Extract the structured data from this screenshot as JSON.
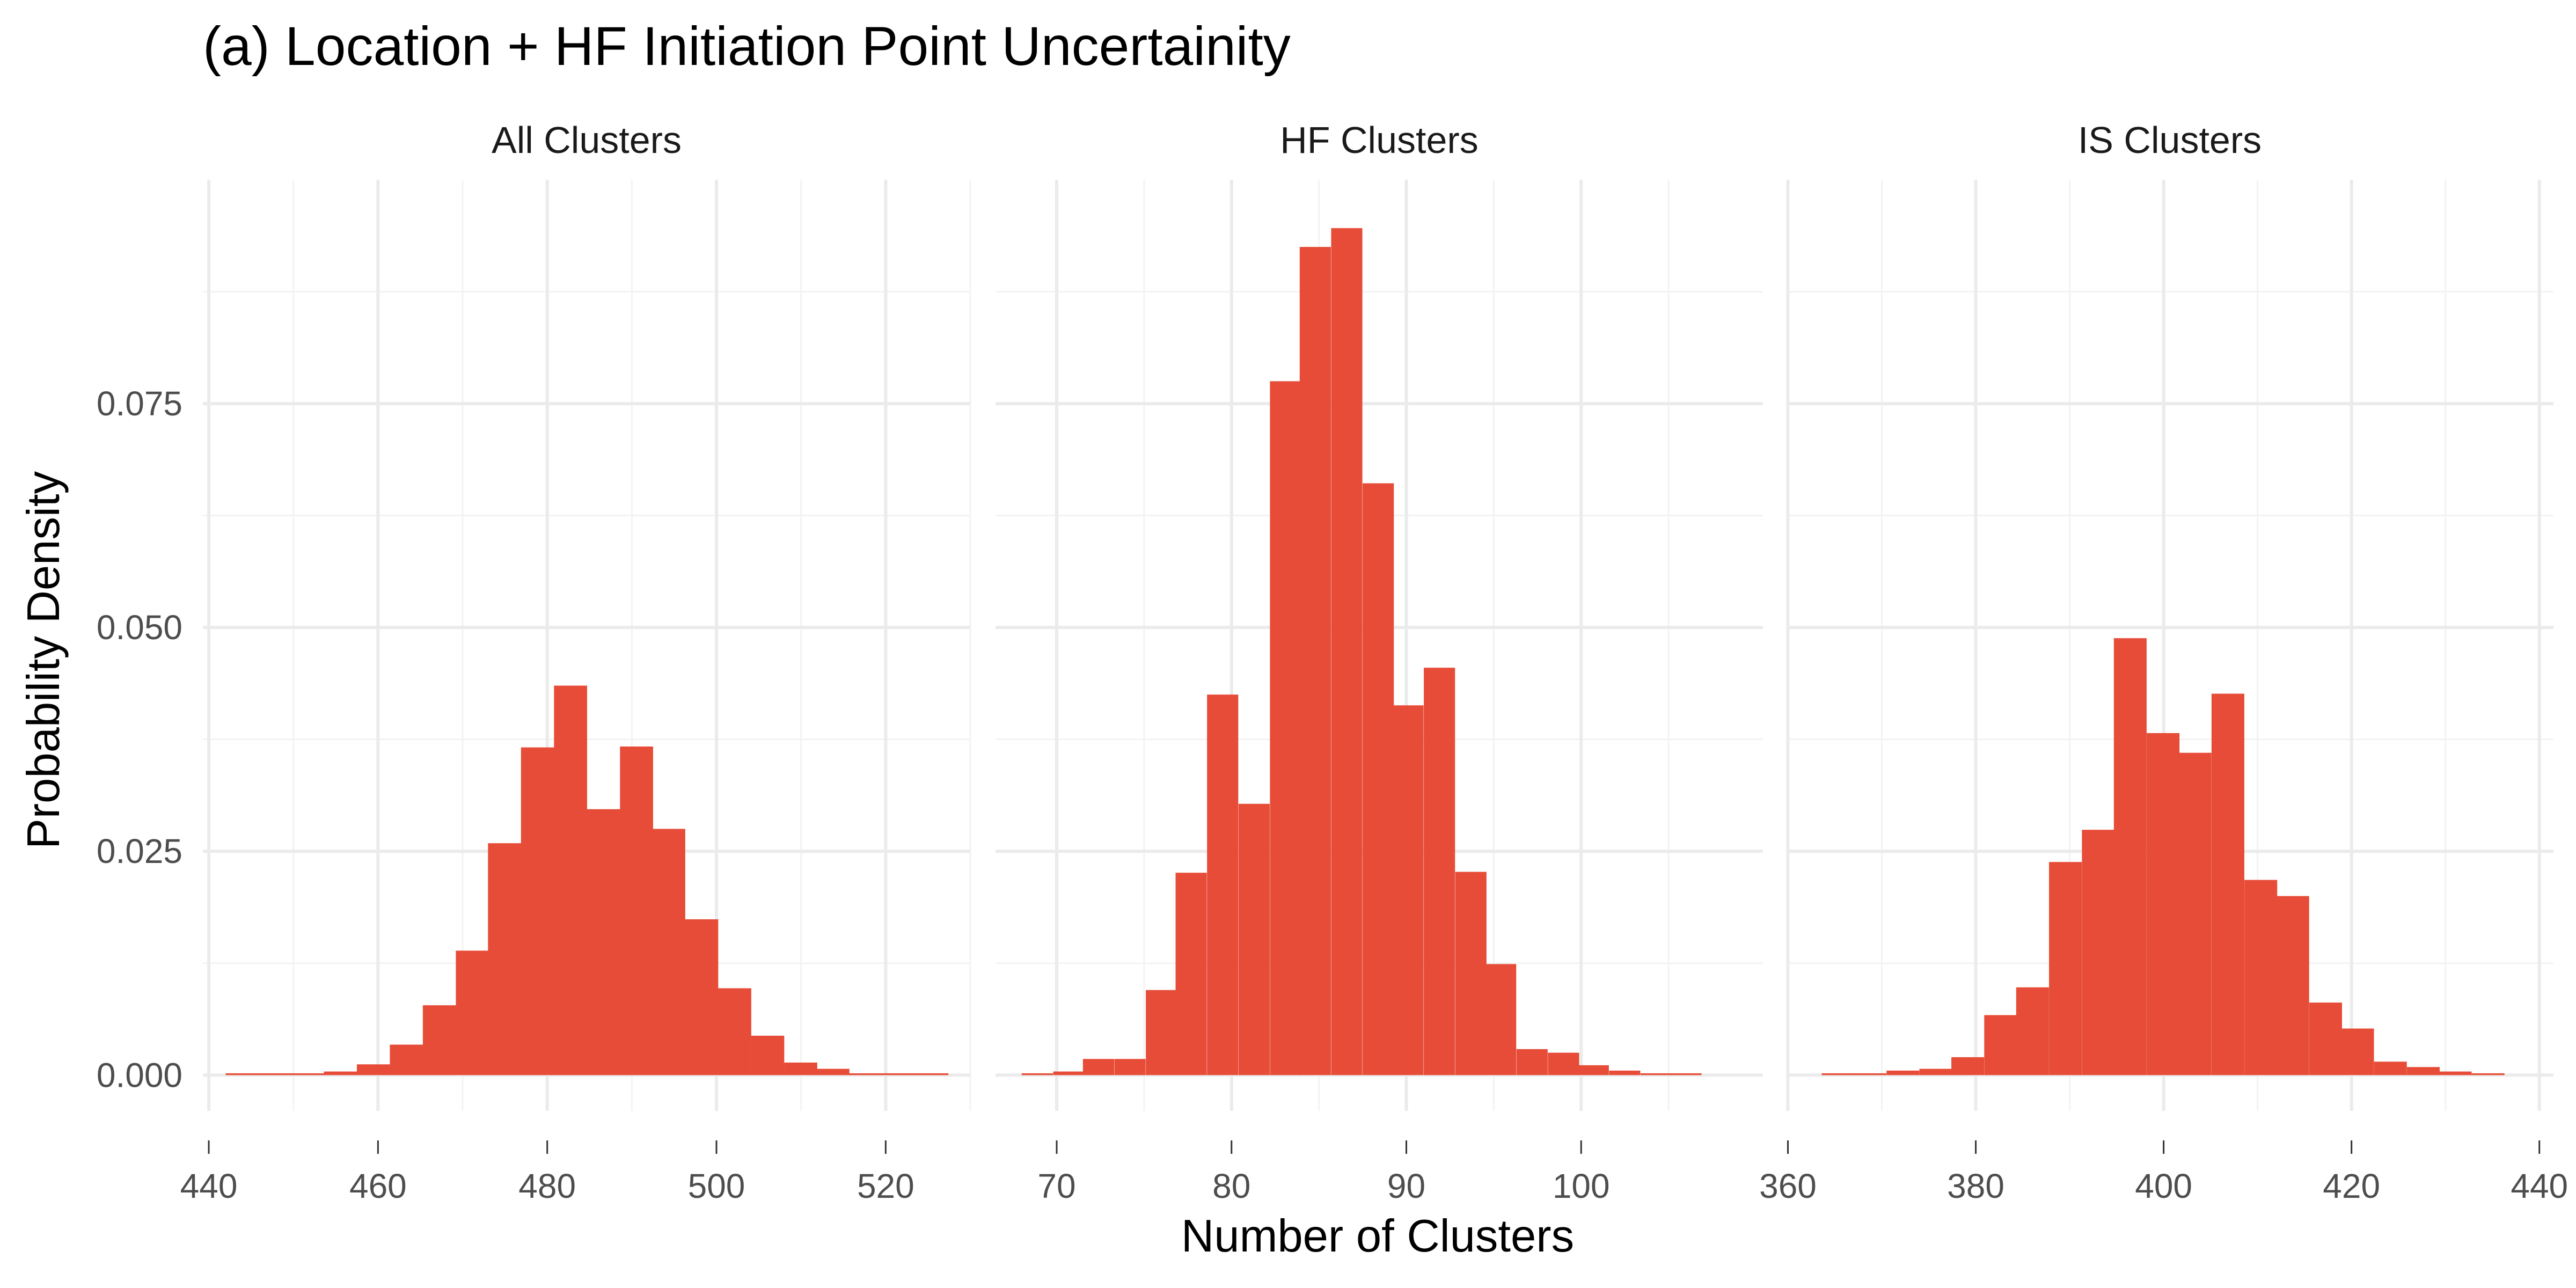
{
  "chart_data": {
    "type": "bar",
    "title": "(a) Location  + HF Initiation Point Uncertainity",
    "xlabel": "Number of Clusters",
    "ylabel": "Probability Density",
    "ylim": [
      -0.004,
      0.1
    ],
    "y_ticks": [
      0.0,
      0.025,
      0.05,
      0.075
    ],
    "y_tick_labels": [
      "0.000",
      "0.025",
      "0.050",
      "0.075"
    ],
    "grid": true,
    "bar_color": "#E64C37",
    "panels": [
      {
        "name": "All Clusters",
        "xlim": [
          439.3,
          530
        ],
        "x_ticks": [
          440,
          460,
          480,
          500,
          520
        ],
        "x_tick_labels": [
          "440",
          "460",
          "480",
          "500",
          "520"
        ],
        "bin_width": 3.88,
        "bins": [
          {
            "x0": 442.0,
            "density": 0.0002
          },
          {
            "x0": 445.9,
            "density": 0.0002
          },
          {
            "x0": 449.8,
            "density": 0.0002
          },
          {
            "x0": 453.6,
            "density": 0.0004
          },
          {
            "x0": 457.5,
            "density": 0.0012
          },
          {
            "x0": 461.4,
            "density": 0.0034
          },
          {
            "x0": 465.3,
            "density": 0.0078
          },
          {
            "x0": 469.2,
            "density": 0.0139
          },
          {
            "x0": 473.0,
            "density": 0.0259
          },
          {
            "x0": 476.9,
            "density": 0.0366
          },
          {
            "x0": 480.8,
            "density": 0.0435
          },
          {
            "x0": 484.7,
            "density": 0.0297
          },
          {
            "x0": 488.6,
            "density": 0.0367
          },
          {
            "x0": 492.4,
            "density": 0.0275
          },
          {
            "x0": 496.3,
            "density": 0.0174
          },
          {
            "x0": 500.2,
            "density": 0.0097
          },
          {
            "x0": 504.1,
            "density": 0.0044
          },
          {
            "x0": 508.0,
            "density": 0.0014
          },
          {
            "x0": 511.8,
            "density": 0.0007
          },
          {
            "x0": 515.7,
            "density": 0.0002
          },
          {
            "x0": 519.6,
            "density": 0.0002
          },
          {
            "x0": 523.5,
            "density": 0.0002
          }
        ]
      },
      {
        "name": "HF Clusters",
        "xlim": [
          66.5,
          110.4
        ],
        "x_ticks": [
          70,
          80,
          90,
          100
        ],
        "x_tick_labels": [
          "70",
          "80",
          "90",
          "100"
        ],
        "bin_width": 1.77,
        "bins": [
          {
            "x0": 68.0,
            "density": 0.0002
          },
          {
            "x0": 69.8,
            "density": 0.0004
          },
          {
            "x0": 71.5,
            "density": 0.0018
          },
          {
            "x0": 73.3,
            "density": 0.0018
          },
          {
            "x0": 75.1,
            "density": 0.0095
          },
          {
            "x0": 76.8,
            "density": 0.0226
          },
          {
            "x0": 78.6,
            "density": 0.0425
          },
          {
            "x0": 80.4,
            "density": 0.0303
          },
          {
            "x0": 82.2,
            "density": 0.0775
          },
          {
            "x0": 83.9,
            "density": 0.0925
          },
          {
            "x0": 85.7,
            "density": 0.0946
          },
          {
            "x0": 87.5,
            "density": 0.0661
          },
          {
            "x0": 89.2,
            "density": 0.0413
          },
          {
            "x0": 91.0,
            "density": 0.0455
          },
          {
            "x0": 92.8,
            "density": 0.0227
          },
          {
            "x0": 94.5,
            "density": 0.0124
          },
          {
            "x0": 96.3,
            "density": 0.0029
          },
          {
            "x0": 98.1,
            "density": 0.0025
          },
          {
            "x0": 99.8,
            "density": 0.0011
          },
          {
            "x0": 101.6,
            "density": 0.0005
          },
          {
            "x0": 103.4,
            "density": 0.0002
          },
          {
            "x0": 105.1,
            "density": 0.0002
          }
        ]
      },
      {
        "name": "IS Clusters",
        "xlim": [
          359.8,
          441.5
        ],
        "x_ticks": [
          360,
          380,
          400,
          420,
          440
        ],
        "x_tick_labels": [
          "360",
          "380",
          "400",
          "420",
          "440"
        ],
        "bin_width": 3.46,
        "bins": [
          {
            "x0": 363.6,
            "density": 0.0002
          },
          {
            "x0": 367.0,
            "density": 0.0002
          },
          {
            "x0": 370.5,
            "density": 0.0005
          },
          {
            "x0": 374.0,
            "density": 0.0007
          },
          {
            "x0": 377.4,
            "density": 0.002
          },
          {
            "x0": 380.9,
            "density": 0.0067
          },
          {
            "x0": 384.3,
            "density": 0.0098
          },
          {
            "x0": 387.8,
            "density": 0.0238
          },
          {
            "x0": 391.3,
            "density": 0.0274
          },
          {
            "x0": 394.7,
            "density": 0.0488
          },
          {
            "x0": 398.2,
            "density": 0.0382
          },
          {
            "x0": 401.6,
            "density": 0.036
          },
          {
            "x0": 405.1,
            "density": 0.0426
          },
          {
            "x0": 408.6,
            "density": 0.0218
          },
          {
            "x0": 412.0,
            "density": 0.02
          },
          {
            "x0": 415.5,
            "density": 0.0081
          },
          {
            "x0": 418.9,
            "density": 0.0052
          },
          {
            "x0": 422.4,
            "density": 0.0015
          },
          {
            "x0": 425.9,
            "density": 0.0009
          },
          {
            "x0": 429.3,
            "density": 0.0004
          },
          {
            "x0": 432.8,
            "density": 0.0002
          }
        ]
      }
    ]
  }
}
